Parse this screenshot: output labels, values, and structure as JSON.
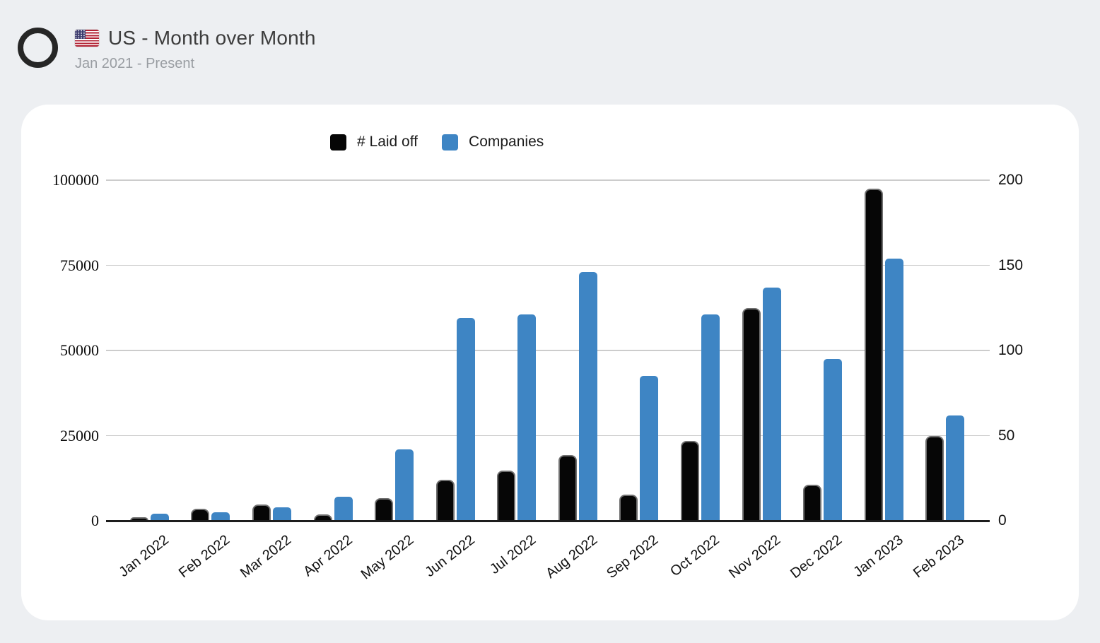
{
  "header": {
    "title": "US - Month over Month",
    "subtitle": "Jan 2021 - Present",
    "logo_icon": "circle-ring-logo",
    "flag_icon": "us-flag"
  },
  "legend": {
    "items": [
      "# Laid off",
      "Companies"
    ]
  },
  "colors": {
    "laid_off": "#060606",
    "companies": "#3e85c4",
    "gridline": "#cccccc",
    "axis_line": "#1d1d1d",
    "page_background": "#edeff2",
    "card_background": "#ffffff"
  },
  "chart_data": {
    "type": "bar",
    "title": "US - Month over Month",
    "subtitle": "Jan 2021 - Present",
    "categories": [
      "Jan 2022",
      "Feb 2022",
      "Mar 2022",
      "Apr 2022",
      "May 2022",
      "Jun 2022",
      "Jul 2022",
      "Aug 2022",
      "Sep 2022",
      "Oct 2022",
      "Nov 2022",
      "Dec 2022",
      "Jan 2023",
      "Feb 2023"
    ],
    "series": [
      {
        "name": "# Laid off",
        "axis": "left",
        "color": "#060606",
        "values": [
          1000,
          3500,
          4700,
          1900,
          6700,
          12000,
          14700,
          19300,
          7700,
          23400,
          62400,
          10600,
          97500,
          25000
        ]
      },
      {
        "name": "Companies",
        "axis": "right",
        "color": "#3e85c4",
        "values": [
          4,
          5,
          8,
          14,
          42,
          119,
          121,
          146,
          85,
          121,
          137,
          95,
          154,
          62
        ]
      }
    ],
    "left_axis": {
      "ticks": [
        0,
        25000,
        50000,
        75000,
        100000
      ],
      "max": 100000
    },
    "right_axis": {
      "ticks": [
        0,
        50,
        100,
        150,
        200
      ],
      "max": 200
    },
    "grid": true,
    "legend_position": "top",
    "x_label_rotation_deg": -38
  }
}
